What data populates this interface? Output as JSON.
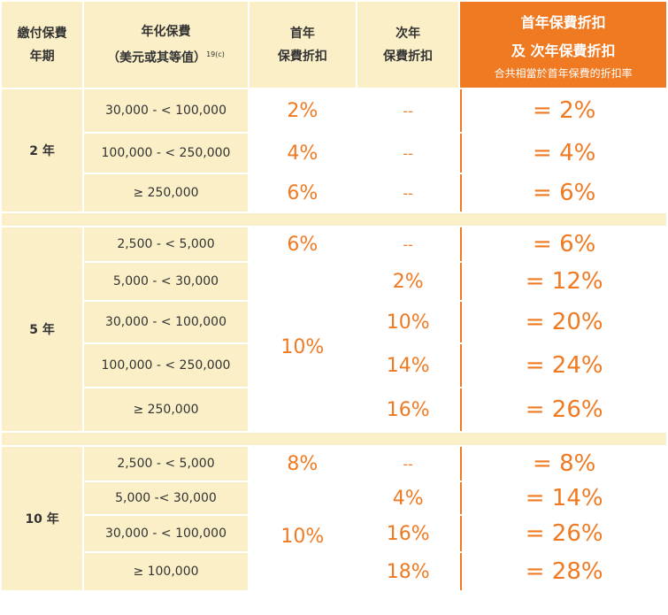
{
  "header": {
    "term_l1": "繳付保費",
    "term_l2": "年期",
    "premium_l1": "年化保費",
    "premium_l2": "（美元或其等值）",
    "premium_note": "19(c)",
    "first_l1": "首年",
    "first_l2": "保費折扣",
    "second_l1": "次年",
    "second_l2": "保費折扣",
    "combined_l1": "首年保費折扣",
    "combined_l2": "及 次年保費折扣",
    "combined_l3": "合共相當於首年保費的折扣率"
  },
  "groups": [
    {
      "term": "2 年",
      "rows": [
        {
          "range": "30,000 - < 100,000",
          "first": "2%",
          "second": "--",
          "total": "= 2%"
        },
        {
          "range": "100,000 - < 250,000",
          "first": "4%",
          "second": "--",
          "total": "= 4%"
        },
        {
          "range": "≥ 250,000",
          "first": "6%",
          "second": "--",
          "total": "= 6%"
        }
      ]
    },
    {
      "term": "5 年",
      "rows": [
        {
          "range": "2,500 - < 5,000",
          "first": "6%",
          "second": "--",
          "total": "= 6%"
        },
        {
          "range": "5,000 - < 30,000",
          "first": "10%",
          "second": "2%",
          "total": "= 12%"
        },
        {
          "range": "30,000 - < 100,000",
          "first": "",
          "second": "10%",
          "total": "= 20%"
        },
        {
          "range": "100,000 - < 250,000",
          "first": "",
          "second": "14%",
          "total": "= 24%"
        },
        {
          "range": "≥ 250,000",
          "first": "",
          "second": "16%",
          "total": "= 26%"
        }
      ]
    },
    {
      "term": "10 年",
      "rows": [
        {
          "range": "2,500 - < 5,000",
          "first": "8%",
          "second": "--",
          "total": "= 8%"
        },
        {
          "range": "5,000 -< 30,000",
          "first": "10%",
          "second": "4%",
          "total": "= 14%"
        },
        {
          "range": "30,000 - < 100,000",
          "first": "",
          "second": "16%",
          "total": "= 26%"
        },
        {
          "range": "≥ 100,000",
          "first": "",
          "second": "18%",
          "total": "= 28%"
        }
      ]
    }
  ]
}
